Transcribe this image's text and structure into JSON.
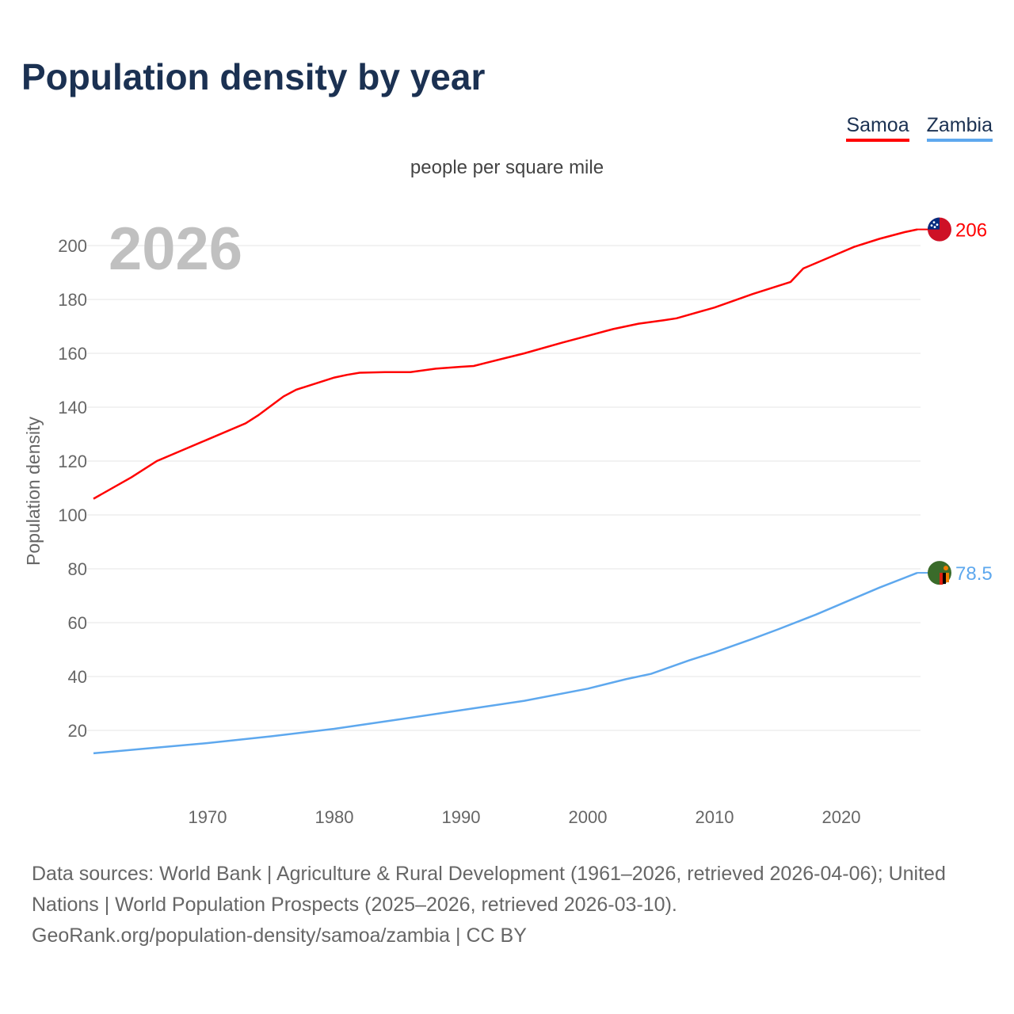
{
  "title": "Population density by year",
  "subtitle": "people per square mile",
  "year_label": "2026",
  "source_lines": [
    "Data sources: World Bank | Agriculture & Rural Development (1961–2026, retrieved 2026-04-06); United Nations | World Population Prospects (2025–2026, retrieved 2026-03-10).",
    "GeoRank.org/population-density/samoa/zambia | CC BY"
  ],
  "chart_data": {
    "type": "line",
    "title": "Population density by year",
    "xlabel": "",
    "ylabel": "Population density",
    "xlim": [
      1961,
      2026
    ],
    "ylim": [
      0,
      210
    ],
    "xticks": [
      1970,
      1980,
      1990,
      2000,
      2010,
      2020
    ],
    "yticks": [
      20,
      40,
      60,
      80,
      100,
      120,
      140,
      160,
      180,
      200
    ],
    "grid": true,
    "legend": "top-right",
    "series": [
      {
        "name": "Samoa",
        "color": "#ff0000",
        "end_label": "206",
        "flag": "samoa-flag",
        "x": [
          1961,
          1964,
          1966,
          1968,
          1970,
          1973,
          1974,
          1976,
          1977,
          1980,
          1981,
          1982,
          1984,
          1986,
          1988,
          1990,
          1991,
          1992,
          1995,
          1998,
          2000,
          2002,
          2004,
          2006,
          2007,
          2010,
          2013,
          2016,
          2017,
          2020,
          2021,
          2023,
          2025,
          2026
        ],
        "y": [
          106,
          114,
          120,
          124,
          128,
          134,
          137,
          144,
          146.5,
          151,
          152,
          152.8,
          153,
          153,
          154.3,
          155,
          155.3,
          156.5,
          160,
          164,
          166.5,
          169,
          171,
          172.3,
          173,
          177,
          182,
          186.5,
          191.5,
          197.5,
          199.5,
          202.5,
          205,
          206
        ]
      },
      {
        "name": "Zambia",
        "color": "#5ea8ee",
        "end_label": "78.5",
        "flag": "zambia-flag",
        "x": [
          1961,
          1965,
          1970,
          1975,
          1980,
          1985,
          1990,
          1995,
          2000,
          2003,
          2005,
          2008,
          2010,
          2013,
          2015,
          2018,
          2020,
          2023,
          2026
        ],
        "y": [
          11.5,
          13.2,
          15.3,
          17.8,
          20.6,
          24,
          27.5,
          31,
          35.5,
          39,
          41,
          46,
          49,
          54,
          57.5,
          63,
          67,
          73,
          78.5
        ]
      }
    ]
  }
}
